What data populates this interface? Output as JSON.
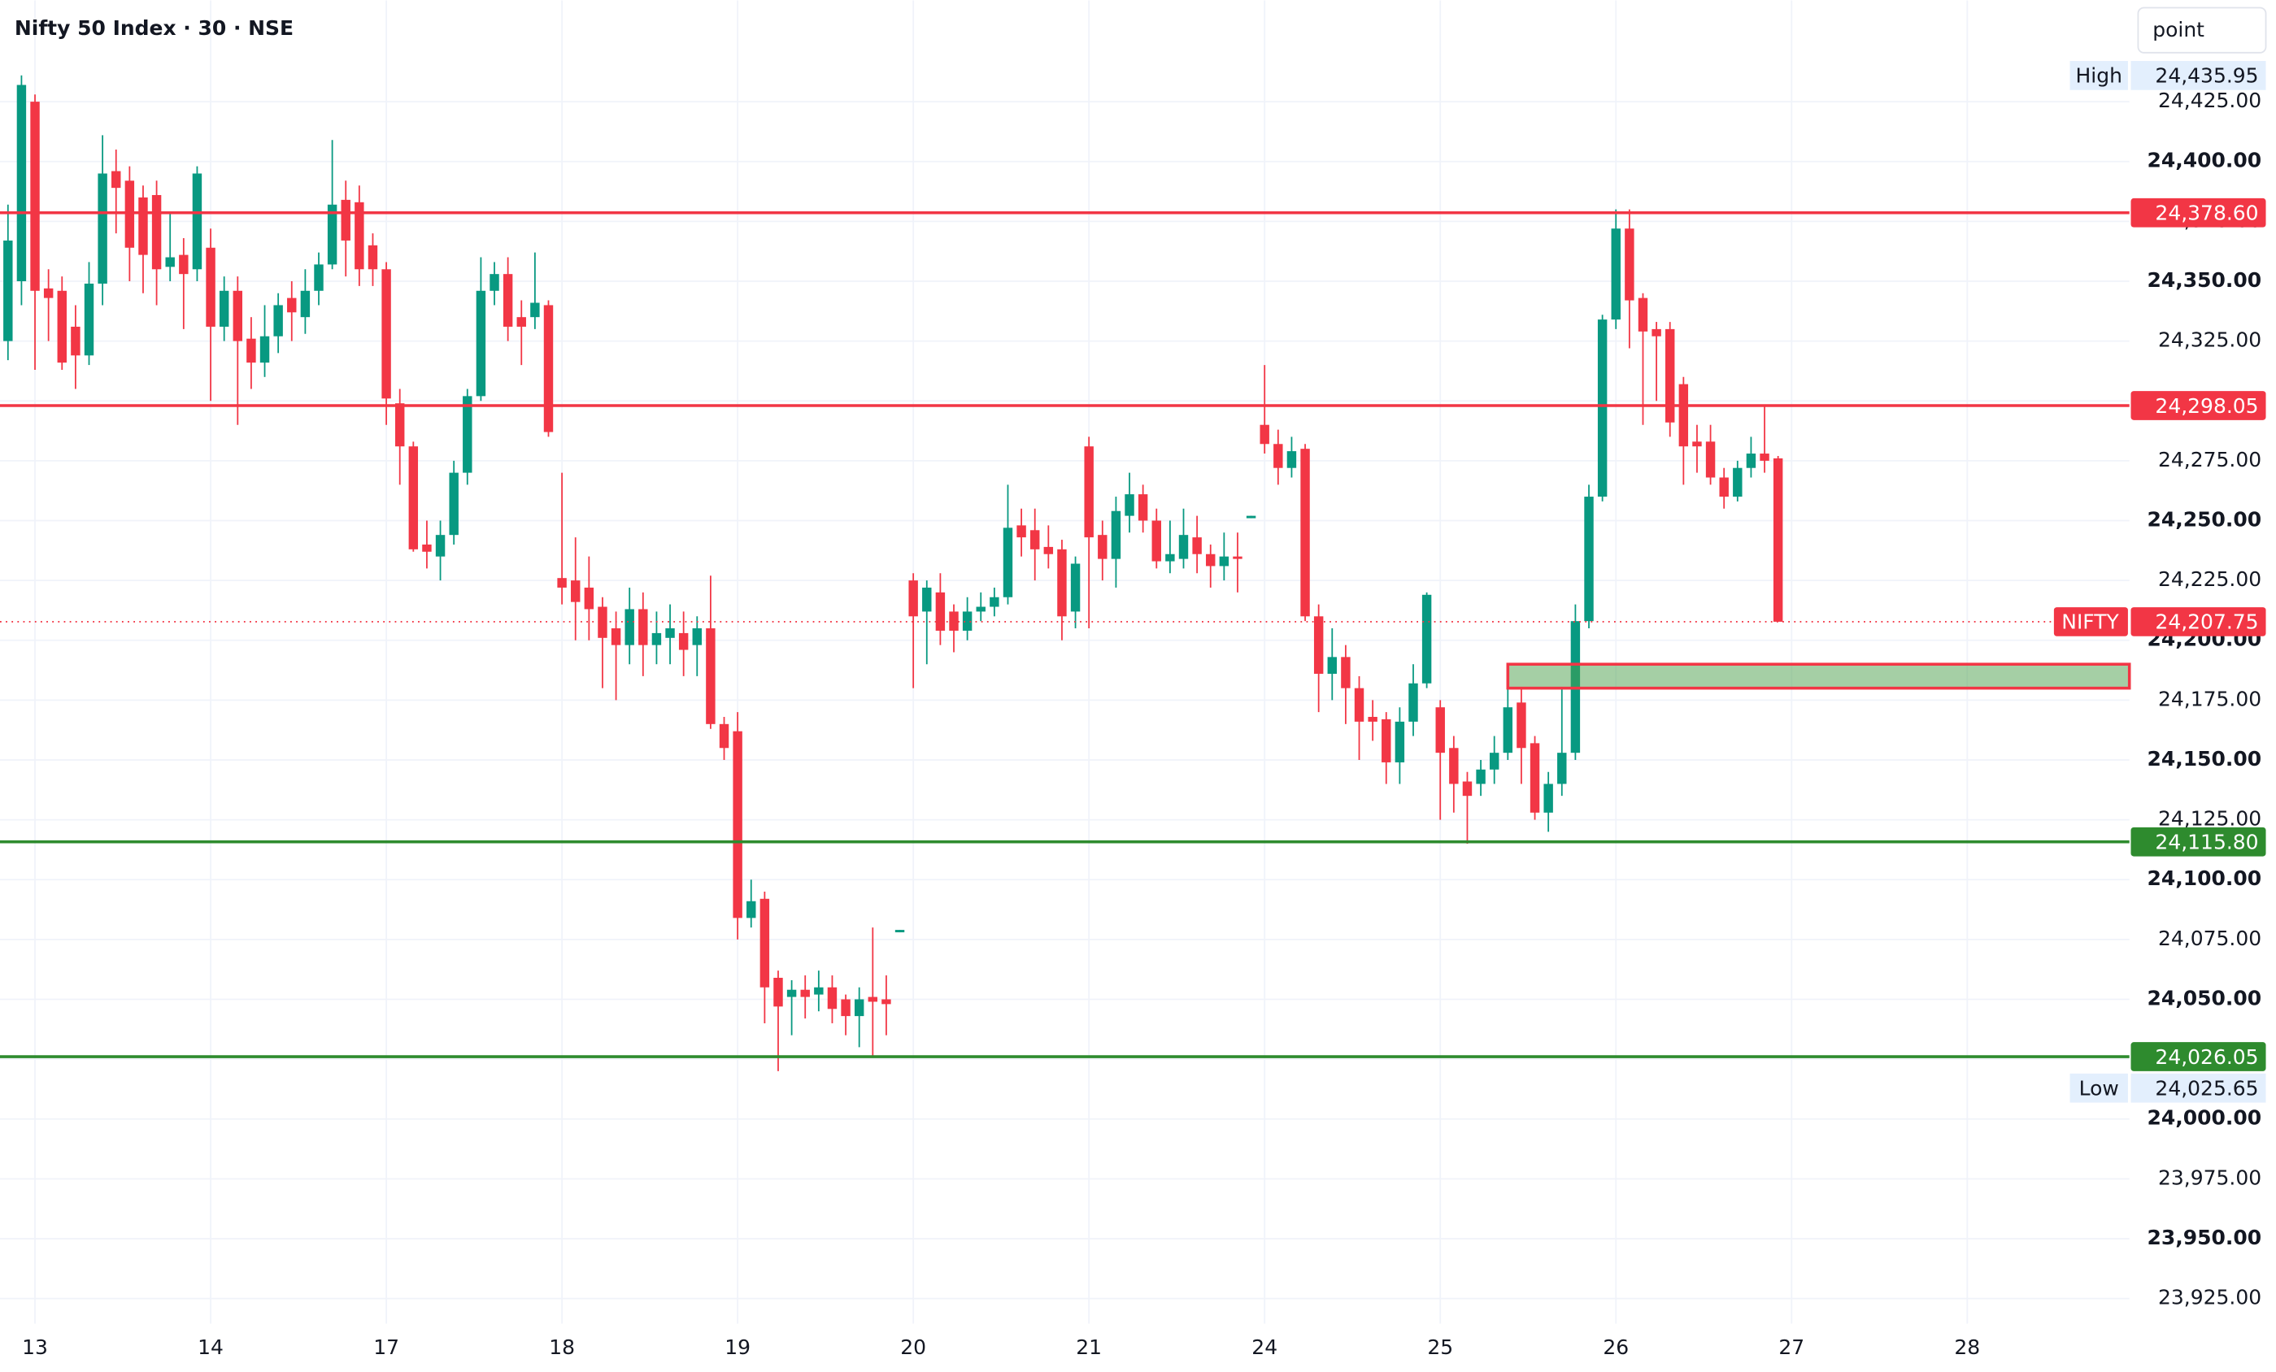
{
  "chart_data": {
    "type": "candlestick",
    "title": "Nifty 50 Index · 30 · NSE",
    "button": "point",
    "up_color": "#089981",
    "down_color": "#f23645",
    "grid": true,
    "open": [
      24325,
      24350,
      24425,
      24347,
      24346,
      24331,
      24319,
      24349,
      24396,
      24392,
      24385,
      24386,
      24356,
      24361,
      24355,
      24364,
      24331,
      24346,
      24326,
      24316,
      24327,
      24343,
      24335,
      24346,
      24357,
      24384,
      24383,
      24365,
      24355,
      24299,
      24281,
      24240,
      24235,
      24244,
      24270,
      24302,
      24346,
      24353,
      24335,
      24335,
      24340,
      24226,
      24225,
      24222,
      24214,
      24205,
      24198,
      24213,
      24198,
      24201,
      24203,
      24198,
      24205,
      24165,
      24162,
      24084,
      24092,
      24059,
      24051,
      24054,
      24052,
      24055,
      24050,
      24043,
      24051,
      24050,
      24078,
      24225,
      24212,
      24220,
      24212,
      24204,
      24212,
      24214,
      24218,
      24248,
      24246,
      24239,
      24238,
      24212,
      24281,
      24244,
      24234,
      24252,
      24261,
      24250,
      24233,
      24234,
      24243,
      24236,
      24231,
      24235,
      24251,
      24290,
      24282,
      24272,
      24280,
      24210,
      24186,
      24193,
      24180,
      24168,
      24167,
      24149,
      24166,
      24182,
      24172,
      24155,
      24141,
      24140,
      24146,
      24153,
      24174,
      24157,
      24128,
      24140,
      24153,
      24208,
      24260,
      24334,
      24372,
      24343,
      24330,
      24330,
      24307,
      24283,
      24283,
      24268,
      24260,
      24272,
      24278,
      24276
    ],
    "high": [
      24382,
      24436,
      24428,
      24355,
      24352,
      24340,
      24358,
      24411,
      24405,
      24398,
      24390,
      24392,
      24378,
      24368,
      24398,
      24372,
      24352,
      24352,
      24335,
      24340,
      24345,
      24350,
      24355,
      24362,
      24409,
      24392,
      24390,
      24370,
      24358,
      24305,
      24283,
      24250,
      24250,
      24275,
      24305,
      24360,
      24358,
      24360,
      24342,
      24362,
      24342,
      24270,
      24243,
      24235,
      24218,
      24212,
      24222,
      24220,
      24212,
      24215,
      24212,
      24210,
      24227,
      24168,
      24170,
      24100,
      24095,
      24062,
      24058,
      24060,
      24062,
      24060,
      24052,
      24055,
      24080,
      24060,
      24079,
      24228,
      24225,
      24228,
      24215,
      24218,
      24220,
      24222,
      24265,
      24255,
      24255,
      24248,
      24242,
      24235,
      24285,
      24250,
      24260,
      24270,
      24265,
      24255,
      24250,
      24255,
      24252,
      24240,
      24245,
      24245,
      24252,
      24315,
      24288,
      24285,
      24282,
      24215,
      24205,
      24198,
      24185,
      24175,
      24170,
      24172,
      24190,
      24220,
      24175,
      24160,
      24145,
      24150,
      24160,
      24190,
      24180,
      24160,
      24145,
      24180,
      24215,
      24265,
      24336,
      24380,
      24380,
      24345,
      24333,
      24333,
      24310,
      24290,
      24290,
      24272,
      24275,
      24285,
      24298,
      24277
    ],
    "low": [
      24317,
      24340,
      24313,
      24325,
      24313,
      24305,
      24315,
      24340,
      24370,
      24350,
      24345,
      24340,
      24350,
      24330,
      24350,
      24300,
      24325,
      24290,
      24305,
      24310,
      24320,
      24325,
      24328,
      24340,
      24355,
      24352,
      24348,
      24348,
      24290,
      24265,
      24237,
      24230,
      24225,
      24240,
      24265,
      24300,
      24340,
      24325,
      24315,
      24330,
      24285,
      24215,
      24200,
      24200,
      24180,
      24175,
      24190,
      24185,
      24190,
      24190,
      24185,
      24185,
      24163,
      24150,
      24075,
      24080,
      24040,
      24020,
      24035,
      24042,
      24045,
      24040,
      24035,
      24030,
      24026,
      24035,
      24078,
      24180,
      24190,
      24198,
      24195,
      24200,
      24208,
      24210,
      24215,
      24235,
      24225,
      24230,
      24200,
      24205,
      24205,
      24225,
      24222,
      24245,
      24245,
      24230,
      24228,
      24230,
      24228,
      24222,
      24225,
      24220,
      24251,
      24278,
      24265,
      24268,
      24208,
      24170,
      24175,
      24165,
      24150,
      24158,
      24140,
      24140,
      24160,
      24180,
      24125,
      24128,
      24115,
      24135,
      24140,
      24150,
      24140,
      24125,
      24120,
      24135,
      24150,
      24205,
      24258,
      24330,
      24322,
      24290,
      24300,
      24285,
      24265,
      24270,
      24265,
      24255,
      24258,
      24268,
      24270,
      24207.75
    ],
    "close": [
      24367,
      24432,
      24346,
      24343,
      24316,
      24319,
      24349,
      24395,
      24389,
      24364,
      24361,
      24355,
      24360,
      24353,
      24395,
      24331,
      24346,
      24325,
      24316,
      24327,
      24340,
      24337,
      24346,
      24357,
      24382,
      24367,
      24355,
      24355,
      24301,
      24281,
      24238,
      24237,
      24244,
      24270,
      24302,
      24346,
      24353,
      24331,
      24331,
      24341,
      24287,
      24222,
      24216,
      24213,
      24201,
      24198,
      24213,
      24198,
      24203,
      24205,
      24196,
      24205,
      24165,
      24155,
      24084,
      24091,
      24055,
      24047,
      24054,
      24051,
      24055,
      24046,
      24043,
      24050,
      24049,
      24048,
      24079,
      24210,
      24222,
      24204,
      24204,
      24212,
      24214,
      24218,
      24247,
      24243,
      24238,
      24236,
      24210,
      24232,
      24243,
      24234,
      24254,
      24261,
      24250,
      24233,
      24236,
      24244,
      24236,
      24231,
      24235,
      24234,
      24252,
      24282,
      24272,
      24279,
      24210,
      24186,
      24193,
      24180,
      24166,
      24166,
      24149,
      24166,
      24182,
      24219,
      24153,
      24140,
      24135,
      24146,
      24153,
      24172,
      24155,
      24128,
      24140,
      24153,
      24208,
      24260,
      24334,
      24372,
      24342,
      24329,
      24327,
      24291,
      24281,
      24281,
      24268,
      24260,
      24272,
      24278,
      24275,
      24207.75
    ],
    "xlim": [
      -0.59,
      157
    ],
    "xticks": [
      {
        "value": 2,
        "label": "13"
      },
      {
        "value": 15,
        "label": "14"
      },
      {
        "value": 28,
        "label": "17"
      },
      {
        "value": 41,
        "label": "18"
      },
      {
        "value": 54,
        "label": "19"
      },
      {
        "value": 67,
        "label": "20"
      },
      {
        "value": 80,
        "label": "21"
      },
      {
        "value": 93,
        "label": "24"
      },
      {
        "value": 106,
        "label": "25"
      },
      {
        "value": 119,
        "label": "26"
      },
      {
        "value": 132,
        "label": "27"
      },
      {
        "value": 145,
        "label": "28"
      }
    ],
    "ylim": [
      23914.5,
      24467.3
    ],
    "yticks": [
      {
        "value": 23925,
        "label": "23,925.00"
      },
      {
        "value": 23950,
        "label": "23,950.00"
      },
      {
        "value": 23975,
        "label": "23,975.00"
      },
      {
        "value": 24000,
        "label": "24,000.00"
      },
      {
        "value": 24025,
        "label": "24,025.00"
      },
      {
        "value": 24050,
        "label": "24,050.00"
      },
      {
        "value": 24075,
        "label": "24,075.00"
      },
      {
        "value": 24100,
        "label": "24,100.00"
      },
      {
        "value": 24125,
        "label": "24,125.00"
      },
      {
        "value": 24150,
        "label": "24,150.00"
      },
      {
        "value": 24175,
        "label": "24,175.00"
      },
      {
        "value": 24200,
        "label": "24,200.00"
      },
      {
        "value": 24225,
        "label": "24,225.00"
      },
      {
        "value": 24250,
        "label": "24,250.00"
      },
      {
        "value": 24275,
        "label": "24,275.00"
      },
      {
        "value": 24300,
        "label": "24,300.00"
      },
      {
        "value": 24325,
        "label": "24,325.00"
      },
      {
        "value": 24350,
        "label": "24,350.00"
      },
      {
        "value": 24375,
        "label": "24,375.00"
      },
      {
        "value": 24400,
        "label": "24,400.00"
      },
      {
        "value": 24425,
        "label": "24,425.00"
      }
    ],
    "levels": [
      {
        "value": 24378.6,
        "label": "24,378.60",
        "color": "#f23645"
      },
      {
        "value": 24298.05,
        "label": "24,298.05",
        "color": "#f23645"
      },
      {
        "value": 24115.8,
        "label": "24,115.80",
        "color": "#2e8b2e"
      },
      {
        "value": 24026.05,
        "label": "24,026.05",
        "color": "#2e8b2e"
      }
    ],
    "zone": {
      "top": 24190,
      "bottom": 24180,
      "start": 111
    },
    "extremes": [
      {
        "name": "High",
        "value": 24435.95,
        "label": "24,435.95"
      },
      {
        "name": "Low",
        "value": 24025.65,
        "label": "24,025.65"
      }
    ],
    "last": {
      "name": "NIFTY",
      "value": 24207.75,
      "label": "24,207.75"
    }
  }
}
